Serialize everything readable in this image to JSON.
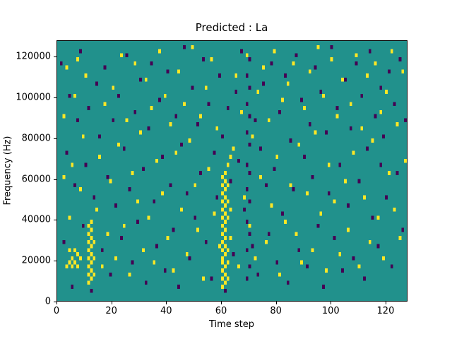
{
  "chart_data": {
    "type": "heatmap",
    "title": "Predicted : La",
    "xlabel": "Time step",
    "ylabel": "Frequency (Hz)",
    "xlim": [
      0,
      128
    ],
    "ylim": [
      0,
      128000
    ],
    "x_ticks": [
      0,
      20,
      40,
      60,
      80,
      100,
      120
    ],
    "x_tick_labels": [
      "0",
      "20",
      "40",
      "60",
      "80",
      "100",
      "120"
    ],
    "y_ticks": [
      0,
      20000,
      40000,
      60000,
      80000,
      100000,
      120000
    ],
    "y_tick_labels": [
      "0",
      "20000",
      "40000",
      "60000",
      "80000",
      "100000",
      "120000"
    ],
    "grid_size": [
      128,
      64
    ],
    "colors": {
      "background": "#21918c",
      "high": "#fde725",
      "low": "#440154",
      "spine": "#000000"
    },
    "legend": "none",
    "grid": false,
    "cells_high": [
      [
        60,
        3
      ],
      [
        60,
        5
      ],
      [
        60,
        7
      ],
      [
        60,
        9
      ],
      [
        60,
        10
      ],
      [
        60,
        12
      ],
      [
        60,
        14
      ],
      [
        60,
        16
      ],
      [
        60,
        18
      ],
      [
        60,
        20
      ],
      [
        60,
        22
      ],
      [
        60,
        24
      ],
      [
        60,
        26
      ],
      [
        60,
        28
      ],
      [
        60,
        30
      ],
      [
        61,
        4
      ],
      [
        61,
        6
      ],
      [
        61,
        8
      ],
      [
        61,
        11
      ],
      [
        61,
        13
      ],
      [
        61,
        15
      ],
      [
        61,
        17
      ],
      [
        61,
        19
      ],
      [
        61,
        21
      ],
      [
        61,
        23
      ],
      [
        61,
        25
      ],
      [
        61,
        27
      ],
      [
        61,
        29
      ],
      [
        61,
        31
      ],
      [
        62,
        5
      ],
      [
        62,
        9
      ],
      [
        62,
        12
      ],
      [
        62,
        20
      ],
      [
        62,
        24
      ],
      [
        62,
        28
      ],
      [
        62,
        33
      ],
      [
        63,
        15
      ],
      [
        63,
        22
      ],
      [
        63,
        35
      ],
      [
        11,
        4
      ],
      [
        11,
        6
      ],
      [
        11,
        8
      ],
      [
        11,
        10
      ],
      [
        11,
        12
      ],
      [
        11,
        14
      ],
      [
        11,
        16
      ],
      [
        11,
        18
      ],
      [
        12,
        5
      ],
      [
        12,
        7
      ],
      [
        12,
        9
      ],
      [
        12,
        11
      ],
      [
        12,
        13
      ],
      [
        12,
        15
      ],
      [
        12,
        17
      ],
      [
        12,
        19
      ],
      [
        13,
        6
      ],
      [
        13,
        10
      ],
      [
        13,
        14
      ],
      [
        3,
        8
      ],
      [
        4,
        9
      ],
      [
        5,
        8
      ],
      [
        5,
        10
      ],
      [
        6,
        9
      ],
      [
        7,
        8
      ],
      [
        7,
        11
      ],
      [
        8,
        10
      ],
      [
        4,
        12
      ],
      [
        6,
        12
      ],
      [
        2,
        30
      ],
      [
        2,
        45
      ],
      [
        3,
        57
      ],
      [
        4,
        20
      ],
      [
        5,
        33
      ],
      [
        6,
        50
      ],
      [
        7,
        59
      ],
      [
        8,
        27
      ],
      [
        9,
        40
      ],
      [
        10,
        55
      ],
      [
        14,
        22
      ],
      [
        15,
        35
      ],
      [
        16,
        8
      ],
      [
        17,
        48
      ],
      [
        18,
        16
      ],
      [
        19,
        29
      ],
      [
        20,
        52
      ],
      [
        21,
        10
      ],
      [
        22,
        38
      ],
      [
        23,
        60
      ],
      [
        24,
        18
      ],
      [
        25,
        44
      ],
      [
        26,
        6
      ],
      [
        27,
        31
      ],
      [
        28,
        58
      ],
      [
        29,
        24
      ],
      [
        30,
        41
      ],
      [
        31,
        12
      ],
      [
        32,
        54
      ],
      [
        33,
        20
      ],
      [
        34,
        47
      ],
      [
        35,
        9
      ],
      [
        36,
        34
      ],
      [
        37,
        61
      ],
      [
        38,
        26
      ],
      [
        39,
        50
      ],
      [
        40,
        15
      ],
      [
        41,
        43
      ],
      [
        42,
        7
      ],
      [
        43,
        36
      ],
      [
        44,
        56
      ],
      [
        45,
        22
      ],
      [
        46,
        48
      ],
      [
        47,
        11
      ],
      [
        48,
        39
      ],
      [
        49,
        62
      ],
      [
        50,
        28
      ],
      [
        51,
        17
      ],
      [
        52,
        45
      ],
      [
        53,
        5
      ],
      [
        54,
        52
      ],
      [
        55,
        32
      ],
      [
        56,
        59
      ],
      [
        57,
        21
      ],
      [
        58,
        42
      ],
      [
        59,
        13
      ],
      [
        64,
        37
      ],
      [
        65,
        55
      ],
      [
        66,
        8
      ],
      [
        67,
        46
      ],
      [
        68,
        25
      ],
      [
        69,
        60
      ],
      [
        70,
        18
      ],
      [
        71,
        40
      ],
      [
        72,
        10
      ],
      [
        73,
        51
      ],
      [
        74,
        30
      ],
      [
        75,
        57
      ],
      [
        76,
        14
      ],
      [
        77,
        44
      ],
      [
        78,
        23
      ],
      [
        79,
        61
      ],
      [
        80,
        35
      ],
      [
        81,
        6
      ],
      [
        82,
        49
      ],
      [
        83,
        19
      ],
      [
        84,
        53
      ],
      [
        85,
        28
      ],
      [
        86,
        58
      ],
      [
        87,
        16
      ],
      [
        88,
        38
      ],
      [
        89,
        9
      ],
      [
        90,
        47
      ],
      [
        91,
        26
      ],
      [
        92,
        56
      ],
      [
        93,
        12
      ],
      [
        94,
        41
      ],
      [
        95,
        62
      ],
      [
        96,
        21
      ],
      [
        97,
        50
      ],
      [
        98,
        7
      ],
      [
        99,
        33
      ],
      [
        100,
        59
      ],
      [
        101,
        24
      ],
      [
        102,
        45
      ],
      [
        103,
        11
      ],
      [
        104,
        54
      ],
      [
        105,
        29
      ],
      [
        106,
        17
      ],
      [
        107,
        48
      ],
      [
        108,
        36
      ],
      [
        109,
        60
      ],
      [
        110,
        8
      ],
      [
        111,
        42
      ],
      [
        112,
        25
      ],
      [
        113,
        55
      ],
      [
        114,
        14
      ],
      [
        115,
        39
      ],
      [
        116,
        58
      ],
      [
        117,
        20
      ],
      [
        118,
        46
      ],
      [
        119,
        10
      ],
      [
        120,
        51
      ],
      [
        121,
        31
      ],
      [
        122,
        61
      ],
      [
        123,
        22
      ],
      [
        124,
        43
      ],
      [
        125,
        15
      ],
      [
        126,
        56
      ],
      [
        127,
        34
      ]
    ],
    "cells_low": [
      [
        69,
        5
      ],
      [
        69,
        12
      ],
      [
        69,
        19
      ],
      [
        69,
        27
      ],
      [
        69,
        33
      ],
      [
        69,
        41
      ],
      [
        69,
        48
      ],
      [
        69,
        55
      ],
      [
        70,
        8
      ],
      [
        70,
        16
      ],
      [
        70,
        24
      ],
      [
        70,
        31
      ],
      [
        70,
        38
      ],
      [
        70,
        45
      ],
      [
        70,
        52
      ],
      [
        70,
        59
      ],
      [
        1,
        58
      ],
      [
        2,
        14
      ],
      [
        3,
        36
      ],
      [
        4,
        50
      ],
      [
        5,
        3
      ],
      [
        6,
        28
      ],
      [
        7,
        44
      ],
      [
        8,
        61
      ],
      [
        9,
        18
      ],
      [
        10,
        33
      ],
      [
        11,
        47
      ],
      [
        12,
        2
      ],
      [
        13,
        25
      ],
      [
        14,
        53
      ],
      [
        15,
        40
      ],
      [
        16,
        12
      ],
      [
        17,
        57
      ],
      [
        18,
        30
      ],
      [
        19,
        6
      ],
      [
        20,
        44
      ],
      [
        21,
        23
      ],
      [
        22,
        50
      ],
      [
        23,
        15
      ],
      [
        24,
        37
      ],
      [
        25,
        60
      ],
      [
        26,
        27
      ],
      [
        27,
        9
      ],
      [
        28,
        46
      ],
      [
        29,
        19
      ],
      [
        30,
        54
      ],
      [
        31,
        32
      ],
      [
        32,
        4
      ],
      [
        33,
        42
      ],
      [
        34,
        58
      ],
      [
        35,
        24
      ],
      [
        36,
        13
      ],
      [
        37,
        49
      ],
      [
        38,
        35
      ],
      [
        39,
        7
      ],
      [
        40,
        56
      ],
      [
        41,
        28
      ],
      [
        42,
        17
      ],
      [
        43,
        45
      ],
      [
        44,
        3
      ],
      [
        45,
        38
      ],
      [
        46,
        62
      ],
      [
        47,
        26
      ],
      [
        48,
        10
      ],
      [
        49,
        52
      ],
      [
        50,
        20
      ],
      [
        51,
        43
      ],
      [
        52,
        31
      ],
      [
        53,
        59
      ],
      [
        54,
        14
      ],
      [
        55,
        48
      ],
      [
        56,
        5
      ],
      [
        57,
        36
      ],
      [
        58,
        25
      ],
      [
        59,
        55
      ],
      [
        60,
        40
      ],
      [
        61,
        2
      ],
      [
        62,
        47
      ],
      [
        63,
        29
      ],
      [
        64,
        11
      ],
      [
        65,
        51
      ],
      [
        66,
        34
      ],
      [
        67,
        61
      ],
      [
        68,
        22
      ],
      [
        71,
        13
      ],
      [
        72,
        44
      ],
      [
        73,
        6
      ],
      [
        74,
        37
      ],
      [
        75,
        53
      ],
      [
        76,
        28
      ],
      [
        77,
        16
      ],
      [
        78,
        58
      ],
      [
        79,
        32
      ],
      [
        80,
        9
      ],
      [
        81,
        46
      ],
      [
        82,
        21
      ],
      [
        83,
        55
      ],
      [
        84,
        4
      ],
      [
        85,
        39
      ],
      [
        86,
        27
      ],
      [
        87,
        60
      ],
      [
        88,
        12
      ],
      [
        89,
        49
      ],
      [
        90,
        35
      ],
      [
        91,
        8
      ],
      [
        92,
        43
      ],
      [
        93,
        30
      ],
      [
        94,
        57
      ],
      [
        95,
        18
      ],
      [
        96,
        51
      ],
      [
        97,
        3
      ],
      [
        98,
        41
      ],
      [
        99,
        26
      ],
      [
        100,
        62
      ],
      [
        101,
        15
      ],
      [
        102,
        47
      ],
      [
        103,
        33
      ],
      [
        104,
        7
      ],
      [
        105,
        54
      ],
      [
        106,
        23
      ],
      [
        107,
        42
      ],
      [
        108,
        10
      ],
      [
        109,
        58
      ],
      [
        110,
        29
      ],
      [
        111,
        50
      ],
      [
        112,
        5
      ],
      [
        113,
        37
      ],
      [
        114,
        61
      ],
      [
        115,
        20
      ],
      [
        116,
        45
      ],
      [
        117,
        13
      ],
      [
        118,
        52
      ],
      [
        118,
        33
      ],
      [
        119,
        40
      ],
      [
        120,
        25
      ],
      [
        121,
        56
      ],
      [
        122,
        8
      ],
      [
        123,
        48
      ],
      [
        124,
        31
      ],
      [
        125,
        59
      ],
      [
        126,
        17
      ],
      [
        127,
        44
      ]
    ]
  }
}
